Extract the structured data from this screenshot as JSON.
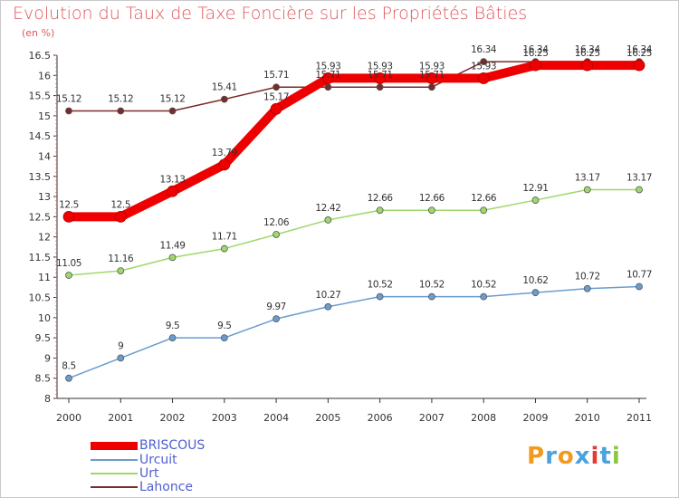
{
  "title": "Evolution du Taux de Taxe Foncière sur les Propriétés Bâties",
  "unit": "(en %)",
  "logo": {
    "letters": [
      "P",
      "r",
      "o",
      "x",
      "i",
      "t",
      "i"
    ],
    "colors": [
      "#f39a1e",
      "#4aa3df",
      "#f39a1e",
      "#4aa3df",
      "#e53935",
      "#4aa3df",
      "#8dc63f"
    ]
  },
  "chart_data": {
    "type": "line",
    "categories": [
      "2000",
      "2001",
      "2002",
      "2003",
      "2004",
      "2005",
      "2006",
      "2007",
      "2008",
      "2009",
      "2010",
      "2011"
    ],
    "ylim": [
      8,
      16.5
    ],
    "yticks": [
      "8",
      "8.5",
      "9",
      "9.5",
      "10",
      "10.5",
      "11",
      "11.5",
      "12",
      "12.5",
      "13",
      "13.5",
      "14",
      "14.5",
      "15",
      "15.5",
      "16",
      "16.5"
    ],
    "grid": false,
    "series": [
      {
        "name": "BRISCOUS",
        "color": "#ee0000",
        "values": [
          12.5,
          12.5,
          13.13,
          13.79,
          15.17,
          15.93,
          15.93,
          15.93,
          15.93,
          16.25,
          16.25,
          16.25
        ],
        "labels": [
          "12.5",
          "12.5",
          "13.13",
          "13.79",
          "15.17",
          "15.93",
          "15.93",
          "15.93",
          "15.93",
          "16.25",
          "16.25",
          "16.25"
        ]
      },
      {
        "name": "Urcuit",
        "color": "#6a9ccf",
        "values": [
          8.5,
          9,
          9.5,
          9.5,
          9.97,
          10.27,
          10.52,
          10.52,
          10.52,
          10.62,
          10.72,
          10.77
        ],
        "labels": [
          "8.5",
          "9",
          "9.5",
          "9.5",
          "9.97",
          "10.27",
          "10.52",
          "10.52",
          "10.52",
          "10.62",
          "10.72",
          "10.77"
        ]
      },
      {
        "name": "Urt",
        "color": "#9fd86a",
        "values": [
          11.05,
          11.16,
          11.49,
          11.71,
          12.06,
          12.42,
          12.66,
          12.66,
          12.66,
          12.91,
          13.17,
          13.17
        ],
        "labels": [
          "11.05",
          "11.16",
          "11.49",
          "11.71",
          "12.06",
          "12.42",
          "12.66",
          "12.66",
          "12.66",
          "12.91",
          "13.17",
          "13.17"
        ]
      },
      {
        "name": "Lahonce",
        "color": "#7a2a2a",
        "values": [
          15.12,
          15.12,
          15.12,
          15.41,
          15.71,
          15.71,
          15.71,
          15.71,
          16.34,
          16.34,
          16.34,
          16.34
        ],
        "labels": [
          "15.12",
          "15.12",
          "15.12",
          "15.41",
          "15.71",
          "15.71",
          "15.71",
          "15.71",
          "16.34",
          "16.34",
          "16.34",
          "16.34"
        ]
      }
    ]
  }
}
